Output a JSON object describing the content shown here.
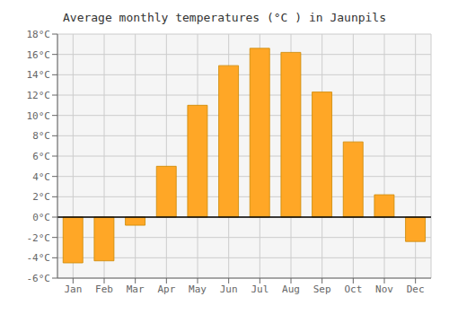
{
  "chart_data": {
    "type": "bar",
    "title": "Average monthly temperatures (°C ) in Jaunpils",
    "categories": [
      "Jan",
      "Feb",
      "Mar",
      "Apr",
      "May",
      "Jun",
      "Jul",
      "Aug",
      "Sep",
      "Oct",
      "Nov",
      "Dec"
    ],
    "values": [
      -4.5,
      -4.3,
      -0.8,
      5.0,
      11.0,
      14.9,
      16.6,
      16.2,
      12.3,
      7.4,
      2.2,
      -2.4
    ],
    "color": "#FFA726",
    "ylim": [
      -6,
      18
    ],
    "yticks": [
      {
        "value": -6,
        "label": "-6°C"
      },
      {
        "value": -4,
        "label": "-4°C"
      },
      {
        "value": -2,
        "label": "-2°C"
      },
      {
        "value": 0,
        "label": "0°C"
      },
      {
        "value": 2,
        "label": "2°C"
      },
      {
        "value": 4,
        "label": "4°C"
      },
      {
        "value": 6,
        "label": "6°C"
      },
      {
        "value": 8,
        "label": "8°C"
      },
      {
        "value": 10,
        "label": "10°C"
      },
      {
        "value": 12,
        "label": "12°C"
      },
      {
        "value": 14,
        "label": "14°C"
      },
      {
        "value": 16,
        "label": "16°C"
      },
      {
        "value": 18,
        "label": "18°C"
      }
    ],
    "grid": true
  }
}
